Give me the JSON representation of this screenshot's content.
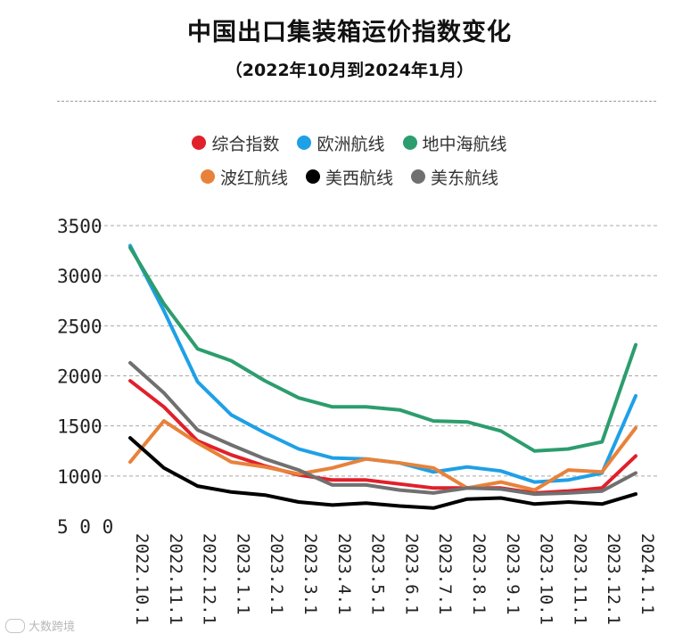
{
  "chart_data": {
    "type": "line",
    "title": "中国出口集装箱运价指数变化",
    "subtitle": "（2022年10月到2024年1月）",
    "xlabel": "",
    "ylabel": "",
    "ylim": [
      500,
      3500
    ],
    "yticks": [
      "3500",
      "3000",
      "2500",
      "2000",
      "1500",
      "1000",
      "5 0 0"
    ],
    "ytick_values": [
      3500,
      3000,
      2500,
      2000,
      1500,
      1000,
      500
    ],
    "grid": true,
    "legend_position": "top-center",
    "categories": [
      "2022.10.1",
      "2022.11.1",
      "2022.12.1",
      "2023.1.1",
      "2023.2.1",
      "2023.3.1",
      "2023.4.1",
      "2023.5.1",
      "2023.6.1",
      "2023.7.1",
      "2023.8.1",
      "2023.9.1",
      "2023.10.1",
      "2023.11.1",
      "2023.12.1",
      "2024.1.1"
    ],
    "series": [
      {
        "name": "综合指数",
        "color": "#e0202b",
        "values": [
          1950,
          1690,
          1350,
          1210,
          1100,
          1010,
          960,
          960,
          920,
          880,
          880,
          880,
          830,
          850,
          880,
          1200
        ]
      },
      {
        "name": "欧洲航线",
        "color": "#1ea0e6",
        "values": [
          3300,
          2650,
          1940,
          1610,
          1430,
          1270,
          1180,
          1170,
          1130,
          1040,
          1090,
          1050,
          940,
          960,
          1030,
          1800
        ]
      },
      {
        "name": "地中海航线",
        "color": "#2c9d6e",
        "values": [
          3280,
          2720,
          2270,
          2150,
          1950,
          1780,
          1690,
          1690,
          1660,
          1550,
          1540,
          1450,
          1250,
          1270,
          1340,
          2310
        ]
      },
      {
        "name": "波红航线",
        "color": "#e8823a",
        "values": [
          1140,
          1550,
          1330,
          1140,
          1090,
          1020,
          1080,
          1170,
          1130,
          1080,
          880,
          940,
          860,
          1060,
          1040,
          1480
        ]
      },
      {
        "name": "美西航线",
        "color": "#000000",
        "values": [
          1380,
          1080,
          900,
          840,
          810,
          740,
          710,
          730,
          700,
          680,
          770,
          780,
          720,
          740,
          720,
          820
        ]
      },
      {
        "name": "美东航线",
        "color": "#707070",
        "values": [
          2130,
          1830,
          1460,
          1310,
          1170,
          1060,
          910,
          910,
          860,
          830,
          880,
          870,
          820,
          830,
          850,
          1030
        ]
      }
    ]
  },
  "watermark": "大数跨境"
}
